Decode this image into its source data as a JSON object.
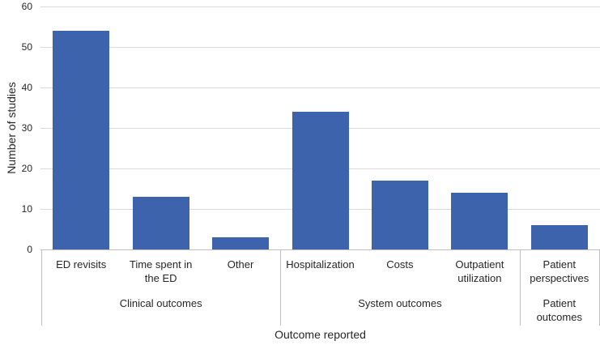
{
  "chart_data": {
    "type": "bar",
    "title": "",
    "xlabel": "Outcome reported",
    "ylabel": "Number of studies",
    "ylim": [
      0,
      60
    ],
    "yticks": [
      0,
      10,
      20,
      30,
      40,
      50,
      60
    ],
    "grid": true,
    "legend": false,
    "bar_color": "#3d63ad",
    "gridline_color": "#d9d9d9",
    "axis_line_color": "#bfbfbf",
    "text_color": "#262626",
    "groups": [
      {
        "label": "Clinical outcomes",
        "categories": [
          "ED revisits",
          "Time spent in the ED",
          "Other"
        ],
        "values": [
          54,
          13,
          3
        ]
      },
      {
        "label": "System outcomes",
        "categories": [
          "Hospitalization",
          "Costs",
          "Outpatient utilization"
        ],
        "values": [
          34,
          17,
          14
        ]
      },
      {
        "label": "Patient outcomes",
        "categories": [
          "Patient perspectives"
        ],
        "values": [
          6
        ]
      }
    ]
  }
}
